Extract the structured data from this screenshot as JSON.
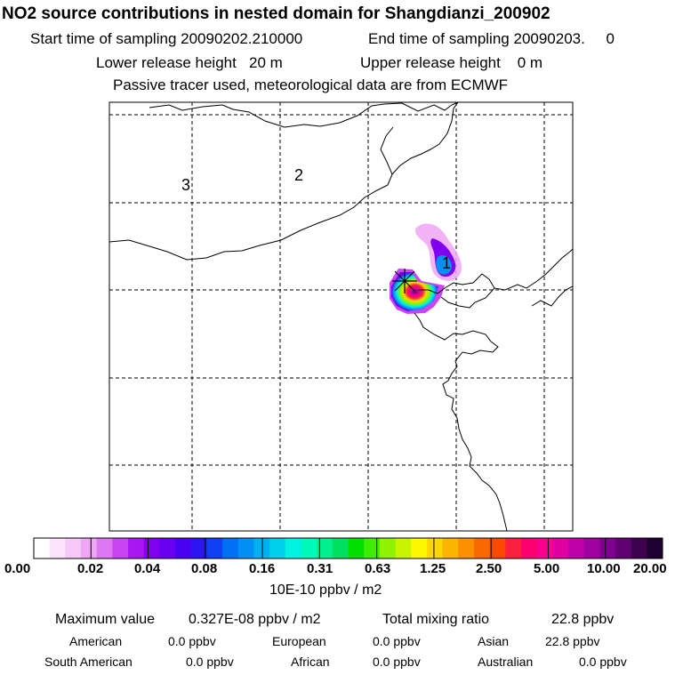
{
  "header": {
    "title": "NO2 source contributions in nested domain for Shangdianzi_200902",
    "start_label": "Start time of sampling",
    "start_value": "20090202.210000",
    "end_label": "End time of sampling",
    "end_value": "20090203.     0",
    "lower_label": "Lower release height",
    "lower_value": "20 m",
    "upper_label": "Upper release height",
    "upper_value": "0 m",
    "note": "Passive tracer used, meteorological data are from ECMWF"
  },
  "map": {
    "region_labels": [
      "1",
      "2",
      "3"
    ]
  },
  "colorbar": {
    "ticks": [
      "0.00",
      "0.02",
      "0.04",
      "0.08",
      "0.16",
      "0.31",
      "0.63",
      "1.25",
      "2.50",
      "5.00",
      "10.00",
      "20.00"
    ],
    "units": "10E-10 ppbv / m2",
    "colors": [
      "#ffffff",
      "#fbe3fb",
      "#f5c8f8",
      "#eea6f5",
      "#dd77f3",
      "#c944f3",
      "#aa16f0",
      "#8000f0",
      "#6a00f2",
      "#4a00f2",
      "#2d14f2",
      "#1040f3",
      "#0070f5",
      "#0090f4",
      "#00b0f0",
      "#00d0ea",
      "#00f2e2",
      "#00f8b8",
      "#00f090",
      "#00e060",
      "#00e000",
      "#40ec00",
      "#90f200",
      "#c8f400",
      "#fcf800",
      "#fcd800",
      "#fcb400",
      "#fc9000",
      "#fc6800",
      "#fc4800",
      "#fc2040",
      "#fc0070",
      "#f80090",
      "#e000a0",
      "#c000a8",
      "#a000a0",
      "#800090",
      "#600070",
      "#400050",
      "#200030"
    ]
  },
  "summary": {
    "max_label": "Maximum value",
    "max_value": "0.327E-08 ppbv / m2",
    "total_label": "Total mixing ratio",
    "total_value": "22.8 ppbv",
    "american_label": "American",
    "american_value": "0.0 ppbv",
    "european_label": "European",
    "european_value": "0.0 ppbv",
    "asian_label": "Asian",
    "asian_value": "22.8 ppbv",
    "south_american_label": "South American",
    "south_american_value": "0.0 ppbv",
    "african_label": "African",
    "african_value": "0.0 ppbv",
    "australian_label": "Australian",
    "australian_value": "0.0 ppbv"
  }
}
